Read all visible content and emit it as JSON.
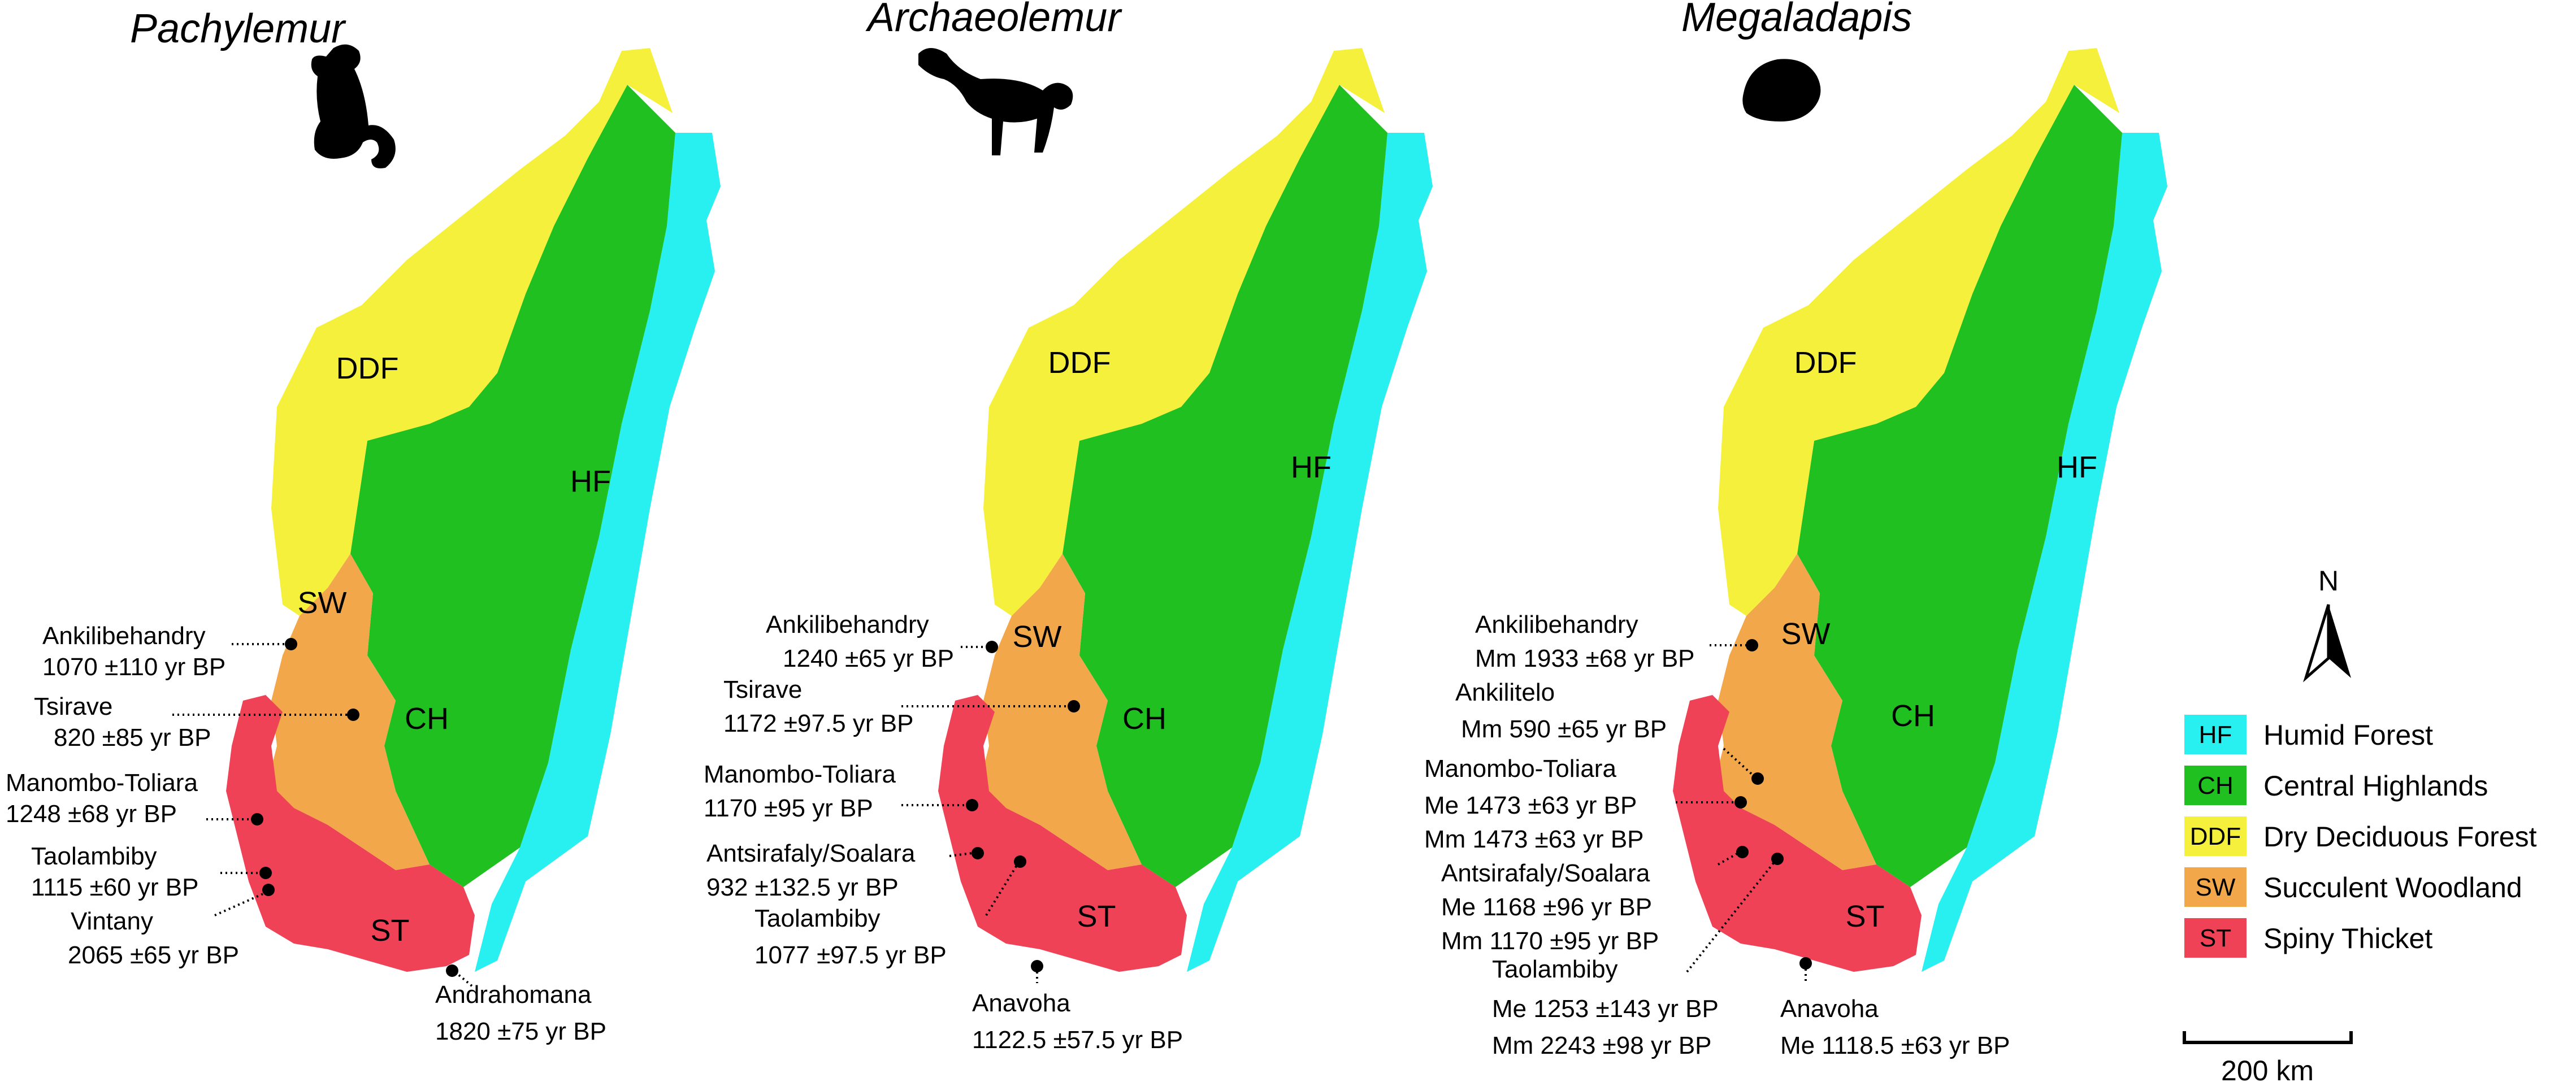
{
  "panels": [
    {
      "genus": "Pachylemur",
      "silhouette_icon": "lemur-silhouette-icon",
      "region_labels": {
        "ddf": "DDF",
        "hf": "HF",
        "sw": "SW",
        "ch": "CH",
        "st": "ST"
      },
      "sites": [
        {
          "name": "Ankilibehandry",
          "date": "1070 ±110 yr BP"
        },
        {
          "name": "Tsirave",
          "date": "820 ±85 yr BP"
        },
        {
          "name": "Manombo-Toliara",
          "date": "1248 ±68 yr BP"
        },
        {
          "name": "Taolambiby",
          "date": "1115 ±60 yr BP"
        },
        {
          "name": "Vintany",
          "date": "2065 ±65 yr BP"
        },
        {
          "name": "Andrahomana",
          "date": "1820 ±75 yr BP"
        }
      ]
    },
    {
      "genus": "Archaeolemur",
      "silhouette_icon": "monkey-lemur-silhouette-icon",
      "region_labels": {
        "ddf": "DDF",
        "hf": "HF",
        "sw": "SW",
        "ch": "CH",
        "st": "ST"
      },
      "sites": [
        {
          "name": "Ankilibehandry",
          "date": "1240 ±65 yr BP"
        },
        {
          "name": "Tsirave",
          "date": "1172 ±97.5 yr BP"
        },
        {
          "name": "Manombo-Toliara",
          "date": "1170 ±95 yr BP"
        },
        {
          "name": "Antsirafaly/Soalara",
          "date": "932 ±132.5 yr BP"
        },
        {
          "name": "Taolambiby",
          "date": "1077 ±97.5 yr BP"
        },
        {
          "name": "Anavoha",
          "date": "1122.5 ±57.5 yr BP"
        }
      ]
    },
    {
      "genus": "Megaladapis",
      "silhouette_icon": "koala-lemur-silhouette-icon",
      "region_labels": {
        "ddf": "DDF",
        "hf": "HF",
        "sw": "SW",
        "ch": "CH",
        "st": "ST"
      },
      "sites": [
        {
          "name": "Ankilibehandry",
          "lines": [
            "Mm 1933 ±68 yr BP"
          ]
        },
        {
          "name": "Ankilitelo",
          "lines": [
            "Mm 590 ±65 yr BP"
          ]
        },
        {
          "name": "Manombo-Toliara",
          "lines": [
            "Me 1473 ±63 yr BP",
            "Mm 1473 ±63 yr BP"
          ]
        },
        {
          "name": "Antsirafaly/Soalara",
          "lines": [
            "Me 1168 ±96 yr BP",
            "Mm 1170 ±95 yr BP"
          ]
        },
        {
          "name": "Taolambiby",
          "lines": [
            "Me 1253 ±143 yr BP",
            "Mm 2243 ±98 yr BP"
          ]
        },
        {
          "name": "Anavoha",
          "lines": [
            "Me 1118.5 ±63 yr BP"
          ]
        }
      ]
    }
  ],
  "legend": {
    "items": [
      {
        "code": "HF",
        "label": "Humid Forest",
        "color": "#28f0f0"
      },
      {
        "code": "CH",
        "label": "Central Highlands",
        "color": "#1fc01f"
      },
      {
        "code": "DDF",
        "label": "Dry Deciduous Forest",
        "color": "#f5f03c"
      },
      {
        "code": "SW",
        "label": "Succulent Woodland",
        "color": "#f2a84a"
      },
      {
        "code": "ST",
        "label": "Spiny Thicket",
        "color": "#ef4256"
      }
    ]
  },
  "north_arrow": {
    "label": "N"
  },
  "scale_bar": {
    "label": "200 km"
  },
  "colors": {
    "hf": "#28f0f0",
    "ch": "#1fc01f",
    "ddf": "#f5f03c",
    "sw": "#f2a84a",
    "st": "#ef4256"
  }
}
